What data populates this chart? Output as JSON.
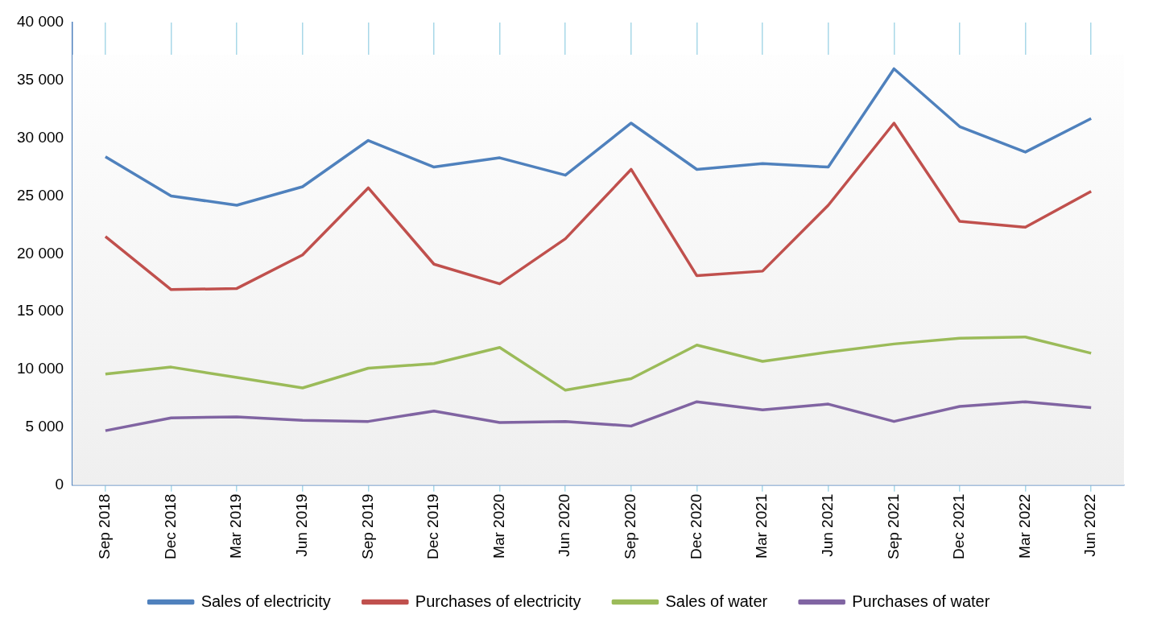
{
  "chart_data": {
    "type": "line",
    "categories": [
      "Sep 2018",
      "Dec 2018",
      "Mar 2019",
      "Jun 2019",
      "Sep 2019",
      "Dec 2019",
      "Mar 2020",
      "Jun 2020",
      "Sep 2020",
      "Dec 2020",
      "Mar 2021",
      "Jun 2021",
      "Sep 2021",
      "Dec 2021",
      "Mar 2022",
      "Jun 2022"
    ],
    "series": [
      {
        "name": "Sales of electricity",
        "color": "#4f81bd",
        "values": [
          28400,
          25000,
          24200,
          25800,
          29800,
          27500,
          28300,
          26800,
          31300,
          27300,
          27800,
          27500,
          36000,
          31000,
          28800,
          31700
        ]
      },
      {
        "name": "Purchases of electricity",
        "color": "#c0504d",
        "values": [
          21500,
          16900,
          17000,
          19900,
          25700,
          19100,
          17400,
          21300,
          27300,
          18100,
          18500,
          24200,
          31300,
          22800,
          22300,
          25400
        ]
      },
      {
        "name": "Sales of water",
        "color": "#9bbb59",
        "values": [
          9600,
          10200,
          9300,
          8400,
          10100,
          10500,
          11900,
          8200,
          9200,
          12100,
          10700,
          11500,
          12200,
          12700,
          12800,
          11400
        ]
      },
      {
        "name": "Purchases of water",
        "color": "#8064a2",
        "values": [
          4700,
          5800,
          5900,
          5600,
          5500,
          6400,
          5400,
          5500,
          5100,
          7200,
          6500,
          7000,
          5500,
          6800,
          7200,
          6700
        ]
      }
    ],
    "ylim": [
      0,
      40000
    ],
    "yticks": [
      {
        "value": 0,
        "label": "0"
      },
      {
        "value": 5000,
        "label": "5 000"
      },
      {
        "value": 10000,
        "label": "10 000"
      },
      {
        "value": 15000,
        "label": "15 000"
      },
      {
        "value": 20000,
        "label": "20 000"
      },
      {
        "value": 25000,
        "label": "25 000"
      },
      {
        "value": 30000,
        "label": "30 000"
      },
      {
        "value": 35000,
        "label": "35 000"
      },
      {
        "value": 40000,
        "label": "40 000"
      }
    ],
    "grid": "x",
    "legend": "bottom",
    "marker": "none",
    "line_style": "solid"
  }
}
